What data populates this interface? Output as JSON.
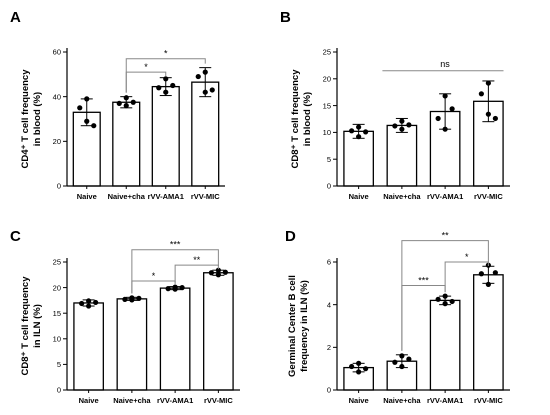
{
  "chart_data": [
    {
      "panel": "A",
      "type": "bar",
      "categories": [
        "Naive",
        "Naive+cha",
        "rVV-AMA1",
        "rVV-MIC"
      ],
      "ylabel_lines": [
        "CD4⁺ T cell frequency",
        "in blood (%)"
      ],
      "ylim": [
        0,
        60
      ],
      "yticks": [
        0,
        20,
        40,
        60
      ],
      "bars": [
        {
          "mean": 33,
          "sd": 6,
          "points": [
            39,
            35,
            29,
            27
          ]
        },
        {
          "mean": 37.5,
          "sd": 2.5,
          "points": [
            39.5,
            37,
            36,
            37.5
          ]
        },
        {
          "mean": 44.5,
          "sd": 4,
          "points": [
            48,
            44,
            42,
            45
          ]
        },
        {
          "mean": 46.5,
          "sd": 6.5,
          "points": [
            51,
            49,
            42,
            43
          ]
        }
      ],
      "brackets": [
        {
          "from": 1,
          "to": 2,
          "y": 51,
          "label": "*"
        },
        {
          "from": 1,
          "to": 3,
          "y": 57,
          "label": "*"
        }
      ]
    },
    {
      "panel": "B",
      "type": "bar",
      "categories": [
        "Naive",
        "Naive+cha",
        "rVV-AMA1",
        "rVV-MIC"
      ],
      "ylabel_lines": [
        "CD8⁺ T cell frequency",
        "in blood (%)"
      ],
      "ylim": [
        0,
        25
      ],
      "yticks": [
        0,
        5,
        10,
        15,
        20,
        25
      ],
      "bars": [
        {
          "mean": 10.2,
          "sd": 1.3,
          "points": [
            11.0,
            10.3,
            9.2,
            10.1
          ]
        },
        {
          "mean": 11.3,
          "sd": 1.3,
          "points": [
            12.1,
            11.2,
            10.6,
            11.4
          ]
        },
        {
          "mean": 13.9,
          "sd": 3.3,
          "points": [
            16.8,
            12.6,
            10.6,
            14.4
          ]
        },
        {
          "mean": 15.8,
          "sd": 3.8,
          "points": [
            19.2,
            17.2,
            13.4,
            12.6
          ]
        }
      ],
      "ns_line": {
        "from": 1,
        "to": 3,
        "y": 21.5,
        "label": "ns"
      }
    },
    {
      "panel": "C",
      "type": "bar",
      "categories": [
        "Naive",
        "Naive+cha",
        "rVV-AMA1",
        "rVV-MIC"
      ],
      "ylabel_lines": [
        "CD8⁺ T cell frequency",
        "in ILN (%)"
      ],
      "ylim": [
        0,
        25
      ],
      "yticks": [
        0,
        5,
        10,
        15,
        20,
        25
      ],
      "bars": [
        {
          "mean": 17.0,
          "sd": 0.6,
          "points": [
            17.4,
            16.9,
            16.4,
            17.1
          ]
        },
        {
          "mean": 17.8,
          "sd": 0.3,
          "points": [
            18.0,
            17.7,
            17.6,
            17.9
          ]
        },
        {
          "mean": 19.9,
          "sd": 0.3,
          "points": [
            20.1,
            19.8,
            19.7,
            20.0
          ]
        },
        {
          "mean": 22.9,
          "sd": 0.5,
          "points": [
            23.4,
            22.9,
            22.5,
            23.0
          ]
        }
      ],
      "brackets": [
        {
          "from": 1,
          "to": 2,
          "y": 21.3,
          "label": "*"
        },
        {
          "from": 2,
          "to": 3,
          "y": 24.4,
          "label": "**"
        },
        {
          "from": 1,
          "to": 3,
          "y": 27.4,
          "label": "***"
        }
      ]
    },
    {
      "panel": "D",
      "type": "bar",
      "categories": [
        "Naive",
        "Naive+cha",
        "rVV-AMA1",
        "rVV-MIC"
      ],
      "ylabel_lines": [
        "Germinal Center B cell",
        "frequency in ILN (%)"
      ],
      "ylim": [
        0,
        6
      ],
      "yticks": [
        0,
        2,
        4,
        6
      ],
      "bars": [
        {
          "mean": 1.05,
          "sd": 0.2,
          "points": [
            1.25,
            1.1,
            0.85,
            1.0
          ]
        },
        {
          "mean": 1.35,
          "sd": 0.3,
          "points": [
            1.6,
            1.3,
            1.1,
            1.45
          ]
        },
        {
          "mean": 4.2,
          "sd": 0.2,
          "points": [
            4.4,
            4.25,
            4.05,
            4.15
          ]
        },
        {
          "mean": 5.4,
          "sd": 0.4,
          "points": [
            5.85,
            5.45,
            4.95,
            5.5
          ]
        }
      ],
      "brackets": [
        {
          "from": 1,
          "to": 2,
          "y": 4.9,
          "label": "***"
        },
        {
          "from": 2,
          "to": 3,
          "y": 6.0,
          "label": "*"
        },
        {
          "from": 1,
          "to": 3,
          "y": 7.0,
          "label": "**"
        }
      ]
    }
  ]
}
